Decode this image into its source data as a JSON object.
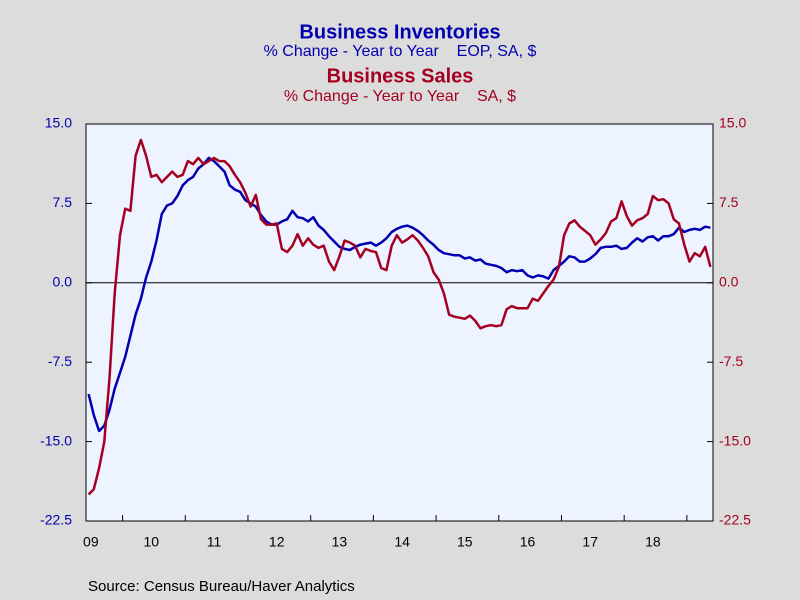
{
  "chart_data": {
    "type": "line",
    "title": "Business Inventories",
    "subtitle": "% Change - Year to Year    EOP, SA, $",
    "title2": "Business Sales",
    "subtitle2": "% Change - Year to Year    SA, $",
    "source": "Source:  Census Bureau/Haver Analytics",
    "categories": [
      null,
      "09",
      null,
      null,
      null,
      null,
      null,
      null,
      null,
      null,
      null,
      null,
      "10",
      null,
      null,
      null,
      null,
      null,
      null,
      null,
      null,
      null,
      null,
      null,
      "11",
      null,
      null,
      null,
      null,
      null,
      null,
      null,
      null,
      null,
      null,
      null,
      "12",
      null,
      null,
      null,
      null,
      null,
      null,
      null,
      null,
      null,
      null,
      null,
      "13",
      null,
      null,
      null,
      null,
      null,
      null,
      null,
      null,
      null,
      null,
      null,
      "14",
      null,
      null,
      null,
      null,
      null,
      null,
      null,
      null,
      null,
      null,
      null,
      "15",
      null,
      null,
      null,
      null,
      null,
      null,
      null,
      null,
      null,
      null,
      null,
      "16",
      null,
      null,
      null,
      null,
      null,
      null,
      null,
      null,
      null,
      null,
      null,
      "17",
      null,
      null,
      null,
      null,
      null,
      null,
      null,
      null,
      null,
      null,
      null,
      "18",
      null,
      null,
      null,
      null,
      null,
      null,
      null,
      null,
      null,
      null,
      null
    ],
    "series": [
      {
        "name": "Business Inventories",
        "color": "#0000b0",
        "axis": "y",
        "values": [
          -10.5,
          -12.5,
          -14,
          -13.5,
          -12,
          -10,
          -8.5,
          -7,
          -5,
          -3,
          -1.5,
          0.5,
          2,
          4,
          6.5,
          7.3,
          7.5,
          8.2,
          9.2,
          9.7,
          10,
          10.8,
          11.2,
          11.8,
          11.5,
          11,
          10.5,
          9.2,
          8.8,
          8.6,
          7.8,
          7.5,
          7.2,
          6.4,
          5.8,
          5.5,
          5.5,
          5.8,
          6,
          6.8,
          6.2,
          6.1,
          5.8,
          6.2,
          5.4,
          5,
          4.4,
          3.9,
          3.4,
          3.2,
          3.1,
          3.4,
          3.6,
          3.7,
          3.8,
          3.5,
          3.8,
          4.2,
          4.8,
          5.1,
          5.3,
          5.4,
          5.2,
          4.9,
          4.5,
          4.0,
          3.6,
          3.1,
          2.8,
          2.7,
          2.6,
          2.6,
          2.3,
          2.4,
          2.1,
          2.2,
          1.8,
          1.7,
          1.6,
          1.4,
          1.0,
          1.2,
          1.1,
          1.2,
          0.7,
          0.5,
          0.7,
          0.6,
          0.4,
          1.2,
          1.6,
          2.0,
          2.5,
          2.4,
          2.0,
          2.0,
          2.3,
          2.7,
          3.3,
          3.4,
          3.4,
          3.5,
          3.2,
          3.3,
          3.8,
          4.2,
          3.9,
          4.3,
          4.4,
          4.0,
          4.4,
          4.4,
          4.6,
          5.2,
          4.8,
          5.0,
          5.1,
          5.0,
          5.3,
          5.2
        ]
      },
      {
        "name": "Business Sales",
        "color": "#a50021",
        "axis": "y2",
        "values": [
          -20,
          -19.5,
          -17.5,
          -15,
          -9,
          -1,
          4.5,
          7,
          6.8,
          12,
          13.5,
          12,
          10,
          10.2,
          9.5,
          10,
          10.5,
          10,
          10.2,
          11.5,
          11.2,
          11.8,
          11.2,
          11.5,
          11.8,
          11.5,
          11.5,
          11,
          10.2,
          9.5,
          8.5,
          7.2,
          8.3,
          6,
          5.5,
          5.5,
          5.6,
          3.2,
          2.9,
          3.5,
          4.6,
          3.5,
          4.2,
          3.6,
          3.3,
          3.5,
          2,
          1.2,
          2.5,
          4,
          3.8,
          3.5,
          2.4,
          3.2,
          3.0,
          2.9,
          1.4,
          1.2,
          3.5,
          4.5,
          3.8,
          4.1,
          4.5,
          4.0,
          3.3,
          2.5,
          1.0,
          0.3,
          -1,
          -3,
          -3.2,
          -3.3,
          -3.4,
          -3.1,
          -3.6,
          -4.3,
          -4.1,
          -4.0,
          -4.1,
          -4.0,
          -2.5,
          -2.2,
          -2.4,
          -2.4,
          -2.4,
          -1.5,
          -1.7,
          -1.0,
          -0.3,
          0.3,
          1.5,
          4.5,
          5.6,
          5.9,
          5.3,
          4.9,
          4.5,
          3.6,
          4.1,
          4.7,
          5.8,
          6.1,
          7.7,
          6.3,
          5.4,
          5.9,
          6.1,
          6.5,
          8.2,
          7.8,
          7.9,
          7.5,
          6.0,
          5.6,
          3.6,
          2.0,
          2.8,
          2.5,
          3.4,
          1.5
        ]
      }
    ],
    "ylim": [
      -22.5,
      15
    ],
    "yticks": [
      {
        "value": 15,
        "label": "15.0"
      },
      {
        "value": 7.5,
        "label": "7.5"
      },
      {
        "value": 0,
        "label": "0.0"
      },
      {
        "value": -7.5,
        "label": "-7.5"
      },
      {
        "value": -15,
        "label": "-15.0"
      },
      {
        "value": -22.5,
        "label": "-22.5"
      }
    ],
    "y2lim": [
      -22.5,
      15
    ],
    "y2ticks": [
      {
        "value": 15,
        "label": "15.0"
      },
      {
        "value": 7.5,
        "label": "7.5"
      },
      {
        "value": 0,
        "label": "0.0"
      },
      {
        "value": -7.5,
        "label": "-7.5"
      },
      {
        "value": -15,
        "label": "-15.0"
      },
      {
        "value": -22.5,
        "label": "-22.5"
      }
    ]
  }
}
